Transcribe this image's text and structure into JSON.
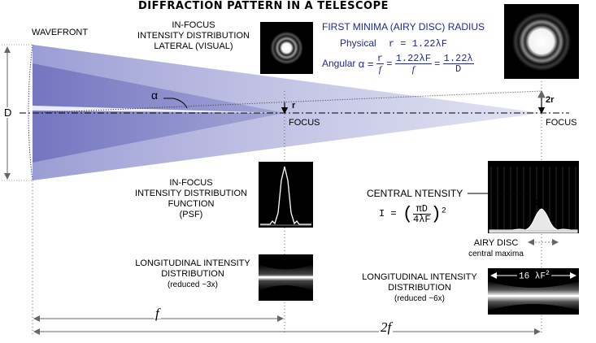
{
  "title": "DIFFRACTION PATTERN IN A TELESCOPE",
  "wavefront_label": "WAVEFRONT",
  "aperture_label": "D",
  "angle_label": "α",
  "radius_label": "r",
  "radius2_label": "2r",
  "focus_label": "FOCUS",
  "infocus_visual": {
    "line1": "IN-FOCUS",
    "line2": "INTENSITY DISTRIBUTION",
    "line3": "LATERAL (VISUAL)"
  },
  "airy_radius": {
    "heading": "FIRST MINIMA (AIRY DISC) RADIUS",
    "physical_label": "Physical",
    "physical_formula": "r = 1.22λF",
    "angular_label": "Angular",
    "alpha_eq": "α =",
    "r_num": "r",
    "r_den": "f",
    "f1_num": "1.22λF",
    "f1_den": "f",
    "f2_num": "1.22λ",
    "f2_den": "D",
    "eq": "="
  },
  "psf": {
    "line1": "IN-FOCUS",
    "line2": "INTENSITY DISTRIBUTION",
    "line3": "FUNCTION",
    "line4": "(PSF)"
  },
  "central_intensity": {
    "label": "CENTRAL NTENSITY",
    "lhs": "I =",
    "num": "πD",
    "den": "4λF",
    "power": "2"
  },
  "airy_disc": {
    "line1": "AIRY DISC",
    "line2": "central maxima"
  },
  "long_left": {
    "line1": "LONGITUDINAL INTENSITY",
    "line2": "DISTRIBUTION",
    "line3": "(reduced ~3x)"
  },
  "long_right": {
    "line1": "LONGITUDINAL INTENSITY",
    "line2": "DISTRIBUTION",
    "line3": "(reduced ~6x)"
  },
  "length_right": "16 λF",
  "length_right_power": "2",
  "dim_f": "f",
  "dim_2f": "2f",
  "colors": {
    "cone": "#7478c4",
    "text_blue": "#1f2a8c",
    "dim_line": "#555555"
  }
}
